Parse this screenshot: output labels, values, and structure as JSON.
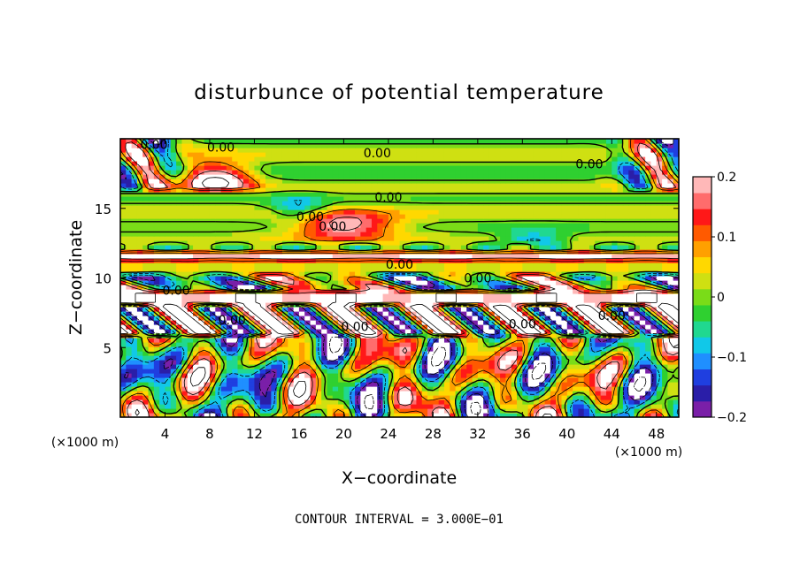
{
  "chart_data": {
    "type": "heatmap",
    "title": "disturbunce of potential temperature",
    "xlabel": "X−coordinate",
    "ylabel": "Z−coordinate",
    "x_unit_left": "(×1000 m)",
    "x_unit_right": "(×1000 m)",
    "xlim": [
      0,
      50
    ],
    "ylim": [
      0,
      20
    ],
    "x_ticks": [
      4,
      8,
      12,
      16,
      20,
      24,
      28,
      32,
      36,
      40,
      44,
      48
    ],
    "y_ticks": [
      5,
      10,
      15
    ],
    "colorbar": {
      "min": -0.2,
      "max": 0.2,
      "ticks": [
        0.2,
        0.1,
        0,
        -0.1,
        -0.2
      ],
      "tick_labels": [
        "0.2",
        "0.1",
        "0",
        "−0.1",
        "−0.2"
      ]
    },
    "contour_labels": [
      "0.00",
      "0.00",
      "0.00",
      "0.00",
      "0.00",
      "0.00",
      "0.00",
      "0.00",
      "0.00",
      "0.00",
      "0.00",
      "0.00",
      "0.00",
      "0.00"
    ],
    "contour_interval_text": "CONTOUR INTERVAL = 3.000E−01",
    "colorscale": [
      "#7a1fa8",
      "#2a1ea8",
      "#1f3fe0",
      "#1f8fff",
      "#11c8e8",
      "#20d890",
      "#2fd030",
      "#7adc18",
      "#cfe012",
      "#ffd800",
      "#ffa000",
      "#ff5a00",
      "#ff1818",
      "#ff6c6c",
      "#ffb8b8"
    ]
  }
}
